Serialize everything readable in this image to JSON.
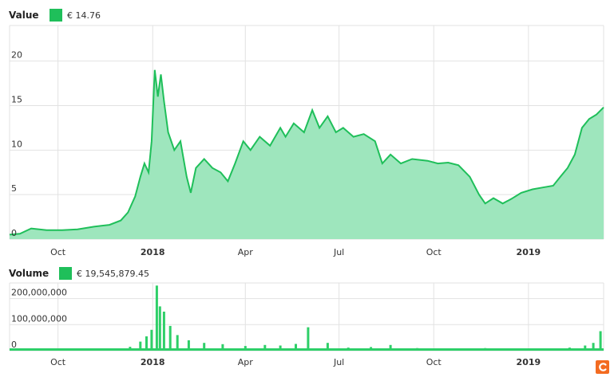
{
  "price_panel": {
    "label": "Value",
    "legend_value": "€ 14.76"
  },
  "volume_panel": {
    "label": "Volume",
    "legend_value": "€ 19,545,879.45"
  },
  "colors": {
    "line": "#1fbf5a",
    "area": "#9ee6bd",
    "volume": "#2ecf68",
    "legend_swatch": "#1fbf5a",
    "grid": "#e2e2e2",
    "axis_text": "#333333",
    "logo_bg": "#f36b21"
  },
  "logo_icon": "c-logo-icon",
  "chart_data": [
    {
      "type": "area",
      "title": "Value",
      "ylim": [
        0,
        24
      ],
      "y_ticks": [
        0,
        5,
        10,
        15,
        20
      ],
      "y_tick_labels": [
        "0",
        "5",
        "10",
        "15",
        "20"
      ],
      "x_tick_labels": [
        "Oct",
        "2018",
        "Apr",
        "Jul",
        "Oct",
        "2019"
      ],
      "x_tick_dates": [
        "2017-10-01",
        "2018-01-01",
        "2018-04-01",
        "2018-07-01",
        "2018-10-01",
        "2019-01-01"
      ],
      "x_range": [
        "2017-08-15",
        "2019-03-15"
      ],
      "grid": true,
      "series": [
        {
          "x": [
            "2017-08-15",
            "2017-08-25",
            "2017-09-05",
            "2017-09-20",
            "2017-10-05",
            "2017-10-20",
            "2017-11-05",
            "2017-11-20",
            "2017-12-01",
            "2017-12-08",
            "2017-12-15",
            "2017-12-20",
            "2017-12-24",
            "2017-12-28",
            "2017-12-31",
            "2018-01-03",
            "2018-01-06",
            "2018-01-09",
            "2018-01-12",
            "2018-01-16",
            "2018-01-22",
            "2018-01-28",
            "2018-02-03",
            "2018-02-07",
            "2018-02-12",
            "2018-02-20",
            "2018-02-28",
            "2018-03-08",
            "2018-03-15",
            "2018-03-22",
            "2018-03-30",
            "2018-04-06",
            "2018-04-15",
            "2018-04-25",
            "2018-05-05",
            "2018-05-10",
            "2018-05-18",
            "2018-05-28",
            "2018-06-05",
            "2018-06-12",
            "2018-06-20",
            "2018-06-28",
            "2018-07-05",
            "2018-07-15",
            "2018-07-25",
            "2018-08-05",
            "2018-08-12",
            "2018-08-20",
            "2018-08-30",
            "2018-09-10",
            "2018-09-25",
            "2018-10-05",
            "2018-10-15",
            "2018-10-25",
            "2018-11-05",
            "2018-11-14",
            "2018-11-20",
            "2018-11-28",
            "2018-12-07",
            "2018-12-15",
            "2018-12-25",
            "2019-01-05",
            "2019-01-15",
            "2019-01-25",
            "2019-02-01",
            "2019-02-08",
            "2019-02-15",
            "2019-02-22",
            "2019-03-01",
            "2019-03-08",
            "2019-03-15"
          ],
          "y": [
            0.5,
            0.6,
            1.2,
            1.0,
            1.0,
            1.1,
            1.4,
            1.6,
            2.1,
            3.0,
            4.8,
            7.0,
            8.5,
            7.5,
            11.0,
            19.0,
            16.0,
            18.5,
            15.5,
            12.0,
            10.0,
            11.0,
            7.0,
            5.2,
            8.0,
            9.0,
            8.0,
            7.5,
            6.5,
            8.5,
            11.0,
            10.0,
            11.5,
            10.5,
            12.5,
            11.5,
            13.0,
            12.0,
            14.5,
            12.5,
            13.8,
            12.0,
            12.5,
            11.5,
            11.8,
            11.0,
            8.5,
            9.5,
            8.5,
            9.0,
            8.8,
            8.5,
            8.6,
            8.3,
            7.0,
            5.0,
            4.0,
            4.6,
            4.0,
            4.5,
            5.2,
            5.6,
            5.8,
            6.0,
            7.0,
            8.0,
            9.5,
            12.5,
            13.5,
            14.0,
            14.8
          ]
        }
      ]
    },
    {
      "type": "bar",
      "title": "Volume",
      "ylim": [
        0,
        260000000
      ],
      "y_ticks": [
        0,
        100000000,
        200000000
      ],
      "y_tick_labels": [
        "0",
        "100,000,000",
        "200,000,000"
      ],
      "x_tick_labels": [
        "Oct",
        "2018",
        "Apr",
        "Jul",
        "Oct",
        "2019"
      ],
      "series": [
        {
          "x": [
            "2017-08-20",
            "2017-09-15",
            "2017-10-10",
            "2017-11-05",
            "2017-11-25",
            "2017-12-10",
            "2017-12-20",
            "2017-12-26",
            "2017-12-31",
            "2018-01-05",
            "2018-01-08",
            "2018-01-12",
            "2018-01-18",
            "2018-01-25",
            "2018-02-05",
            "2018-02-20",
            "2018-03-10",
            "2018-04-01",
            "2018-04-20",
            "2018-05-05",
            "2018-05-20",
            "2018-06-01",
            "2018-06-20",
            "2018-07-10",
            "2018-08-01",
            "2018-08-20",
            "2018-09-15",
            "2018-10-10",
            "2018-11-05",
            "2018-11-20",
            "2018-12-10",
            "2019-01-05",
            "2019-01-25",
            "2019-02-10",
            "2019-02-25",
            "2019-03-05",
            "2019-03-12"
          ],
          "values": [
            3000000,
            4000000,
            5000000,
            6000000,
            8000000,
            15000000,
            35000000,
            55000000,
            80000000,
            250000000,
            170000000,
            150000000,
            95000000,
            60000000,
            40000000,
            30000000,
            25000000,
            18000000,
            22000000,
            20000000,
            26000000,
            90000000,
            30000000,
            12000000,
            14000000,
            22000000,
            10000000,
            8000000,
            6000000,
            10000000,
            7000000,
            8000000,
            9000000,
            12000000,
            20000000,
            30000000,
            75000000
          ]
        }
      ]
    }
  ]
}
